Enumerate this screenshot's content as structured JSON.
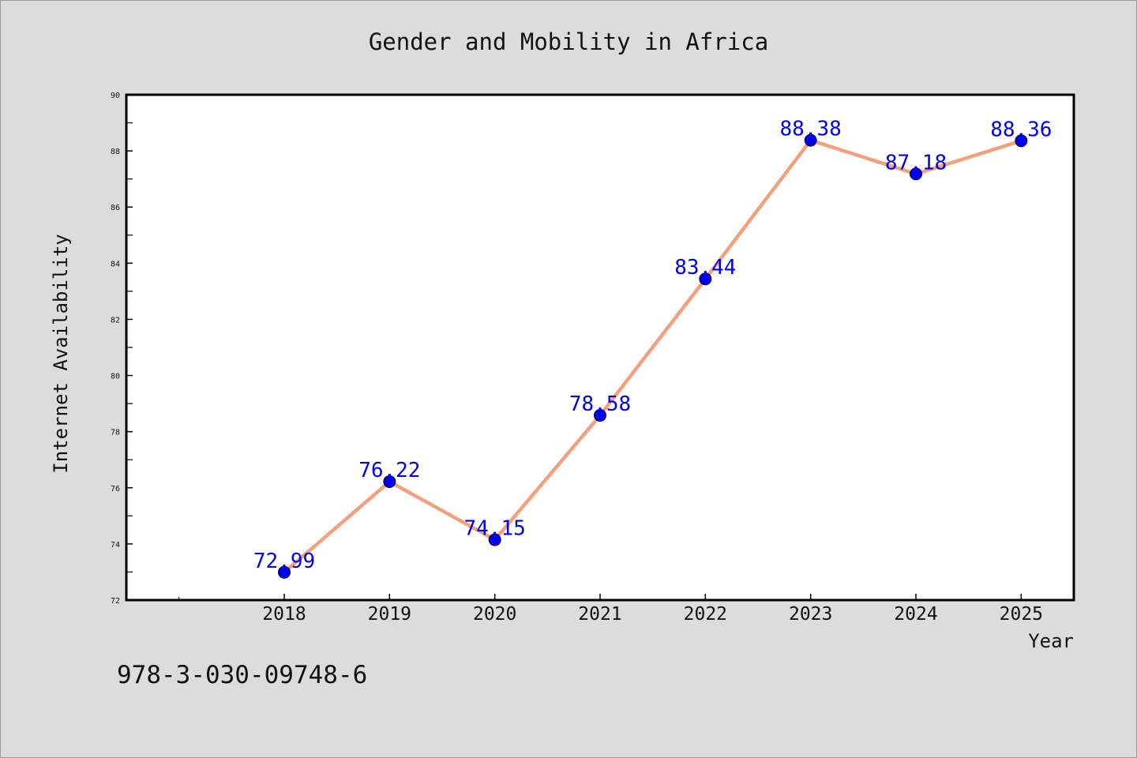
{
  "colors": {
    "background": "#dcdcdc",
    "plot_background": "#ffffff",
    "line": "#f4a07c",
    "marker": "#0000ee",
    "data_label": "#0000ee"
  },
  "footer_text": "978-3-030-09748-6",
  "chart_data": {
    "type": "line",
    "title": "Gender and Mobility in Africa",
    "xlabel": "Year",
    "ylabel": "Internet Availability",
    "x": [
      2018,
      2019,
      2020,
      2021,
      2022,
      2023,
      2024,
      2025
    ],
    "x_tick_labels": [
      "2018",
      "2019",
      "2020",
      "2021",
      "2022",
      "2023",
      "2024",
      "2025"
    ],
    "xlim": [
      2016.5,
      2025.5
    ],
    "ylim": [
      72,
      90
    ],
    "y_ticks": [
      72,
      74,
      76,
      78,
      80,
      82,
      84,
      86,
      88,
      90
    ],
    "series": [
      {
        "values": [
          72.99,
          76.22,
          74.15,
          78.58,
          83.44,
          88.38,
          87.18,
          88.36
        ],
        "data_labels": [
          "72.99",
          "76.22",
          "74.15",
          "78.58",
          "83.44",
          "88.38",
          "87.18",
          "88.36"
        ]
      }
    ],
    "grid": false,
    "legend": "none"
  }
}
